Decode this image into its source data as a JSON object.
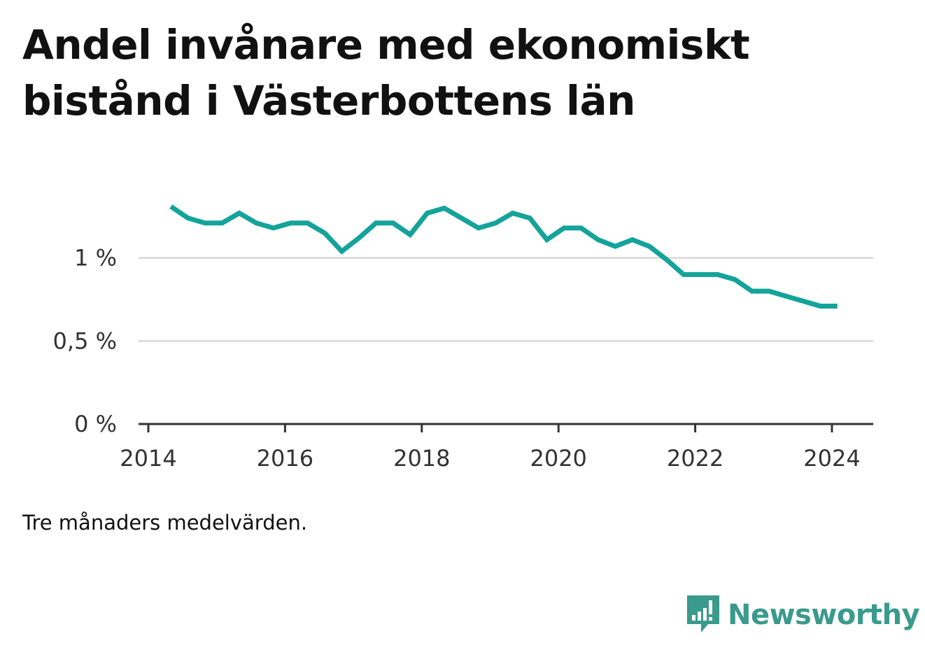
{
  "title": "Andel invånare med ekonomiskt bistånd i Västerbottens län",
  "note": "Tre månaders medelvärden.",
  "brand": {
    "name": "Newsworthy",
    "icon": "newsworthy-logo-icon",
    "color": "#3a9a8c"
  },
  "colors": {
    "line": "#14a39a",
    "grid": "#dddddd",
    "axis": "#333333",
    "text": "#333333"
  },
  "chart_data": {
    "type": "line",
    "title": "Andel invånare med ekonomiskt bistånd i Västerbottens län",
    "xlabel": "",
    "ylabel": "",
    "x_ticks": [
      "2014",
      "2016",
      "2018",
      "2020",
      "2022",
      "2024"
    ],
    "y_ticks": [
      "0 %",
      "0,5 %",
      "1 %"
    ],
    "xlim": [
      2014,
      2024.5
    ],
    "ylim": [
      0,
      1.5
    ],
    "grid": true,
    "series": [
      {
        "x": [
          2014.33,
          2014.58,
          2014.83,
          2015.08,
          2015.33,
          2015.58,
          2015.83,
          2016.08,
          2016.33,
          2016.58,
          2016.83,
          2017.08,
          2017.33,
          2017.58,
          2017.83,
          2018.08,
          2018.33,
          2018.58,
          2018.83,
          2019.08,
          2019.33,
          2019.58,
          2019.83,
          2020.08,
          2020.33,
          2020.58,
          2020.83,
          2021.08,
          2021.33,
          2021.58,
          2021.83,
          2022.08,
          2022.33,
          2022.58,
          2022.83,
          2023.08,
          2023.33,
          2023.58,
          2023.83,
          2024.08
        ],
        "y": [
          1.31,
          1.24,
          1.21,
          1.21,
          1.27,
          1.21,
          1.18,
          1.21,
          1.21,
          1.15,
          1.04,
          1.12,
          1.21,
          1.21,
          1.14,
          1.27,
          1.3,
          1.24,
          1.18,
          1.21,
          1.27,
          1.24,
          1.11,
          1.18,
          1.18,
          1.11,
          1.07,
          1.11,
          1.07,
          0.99,
          0.9,
          0.9,
          0.9,
          0.87,
          0.8,
          0.8,
          0.77,
          0.74,
          0.71,
          0.71
        ]
      }
    ]
  }
}
